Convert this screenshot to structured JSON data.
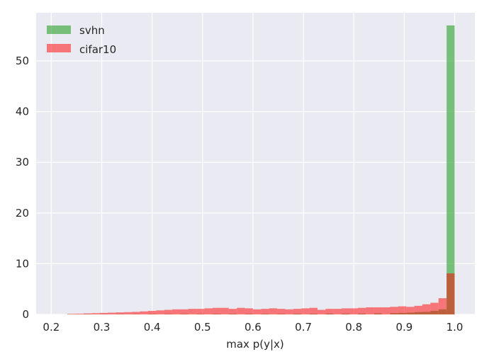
{
  "chart_data": {
    "type": "histogram",
    "xlabel": "max p(y|x)",
    "ylabel": "",
    "xlim": [
      0.17,
      1.04
    ],
    "ylim": [
      0,
      59.5
    ],
    "xticks": [
      "0.2",
      "0.3",
      "0.4",
      "0.5",
      "0.6",
      "0.7",
      "0.8",
      "0.9",
      "1.0"
    ],
    "yticks": [
      "0",
      "10",
      "20",
      "30",
      "40",
      "50"
    ],
    "grid": true,
    "legend_position": "top-left",
    "bin_width": 0.016,
    "series": [
      {
        "name": "svhn",
        "color": "#2ca02c",
        "opacity": 0.6,
        "bins": [
          [
            0.232,
            0.248,
            0.05
          ],
          [
            0.264,
            0.28,
            0.05
          ],
          [
            0.296,
            0.312,
            0.05
          ],
          [
            0.328,
            0.344,
            0.05
          ],
          [
            0.36,
            0.376,
            0.05
          ],
          [
            0.392,
            0.408,
            0.08
          ],
          [
            0.424,
            0.44,
            0.08
          ],
          [
            0.456,
            0.472,
            0.08
          ],
          [
            0.488,
            0.504,
            0.08
          ],
          [
            0.52,
            0.536,
            0.1
          ],
          [
            0.552,
            0.568,
            0.1
          ],
          [
            0.584,
            0.6,
            0.1
          ],
          [
            0.616,
            0.632,
            0.1
          ],
          [
            0.648,
            0.664,
            0.1
          ],
          [
            0.68,
            0.696,
            0.12
          ],
          [
            0.712,
            0.728,
            0.12
          ],
          [
            0.744,
            0.76,
            0.15
          ],
          [
            0.776,
            0.792,
            0.15
          ],
          [
            0.808,
            0.824,
            0.15
          ],
          [
            0.84,
            0.856,
            0.2
          ],
          [
            0.872,
            0.888,
            0.25
          ],
          [
            0.888,
            0.904,
            0.3
          ],
          [
            0.904,
            0.92,
            0.35
          ],
          [
            0.92,
            0.936,
            0.45
          ],
          [
            0.936,
            0.952,
            0.5
          ],
          [
            0.952,
            0.968,
            0.7
          ],
          [
            0.968,
            0.984,
            1.0
          ],
          [
            0.984,
            1.0,
            57.0
          ]
        ]
      },
      {
        "name": "cifar10",
        "color": "#ff0000",
        "opacity": 0.5,
        "bins": [
          [
            0.232,
            0.248,
            0.1
          ],
          [
            0.248,
            0.264,
            0.15
          ],
          [
            0.264,
            0.28,
            0.2
          ],
          [
            0.28,
            0.296,
            0.25
          ],
          [
            0.296,
            0.312,
            0.3
          ],
          [
            0.312,
            0.328,
            0.35
          ],
          [
            0.328,
            0.344,
            0.4
          ],
          [
            0.344,
            0.36,
            0.45
          ],
          [
            0.36,
            0.376,
            0.5
          ],
          [
            0.376,
            0.392,
            0.6
          ],
          [
            0.392,
            0.408,
            0.7
          ],
          [
            0.408,
            0.424,
            0.8
          ],
          [
            0.424,
            0.44,
            0.9
          ],
          [
            0.44,
            0.456,
            1.0
          ],
          [
            0.456,
            0.472,
            1.0
          ],
          [
            0.472,
            0.488,
            1.1
          ],
          [
            0.488,
            0.504,
            1.1
          ],
          [
            0.504,
            0.52,
            1.2
          ],
          [
            0.52,
            0.536,
            1.3
          ],
          [
            0.536,
            0.552,
            1.3
          ],
          [
            0.552,
            0.568,
            1.1
          ],
          [
            0.568,
            0.584,
            1.3
          ],
          [
            0.584,
            0.6,
            1.2
          ],
          [
            0.6,
            0.616,
            1.0
          ],
          [
            0.616,
            0.632,
            1.1
          ],
          [
            0.632,
            0.648,
            1.2
          ],
          [
            0.648,
            0.664,
            1.1
          ],
          [
            0.664,
            0.68,
            1.0
          ],
          [
            0.68,
            0.696,
            1.1
          ],
          [
            0.696,
            0.712,
            1.2
          ],
          [
            0.712,
            0.728,
            1.3
          ],
          [
            0.728,
            0.744,
            0.9
          ],
          [
            0.744,
            0.76,
            1.1
          ],
          [
            0.76,
            0.776,
            1.1
          ],
          [
            0.776,
            0.792,
            1.2
          ],
          [
            0.792,
            0.808,
            1.2
          ],
          [
            0.808,
            0.824,
            1.3
          ],
          [
            0.824,
            0.84,
            1.4
          ],
          [
            0.84,
            0.856,
            1.4
          ],
          [
            0.856,
            0.872,
            1.4
          ],
          [
            0.872,
            0.888,
            1.5
          ],
          [
            0.888,
            0.904,
            1.6
          ],
          [
            0.904,
            0.92,
            1.5
          ],
          [
            0.92,
            0.936,
            1.7
          ],
          [
            0.936,
            0.952,
            2.0
          ],
          [
            0.952,
            0.968,
            2.3
          ],
          [
            0.968,
            0.984,
            3.2
          ],
          [
            0.984,
            1.0,
            8.1
          ]
        ]
      }
    ]
  }
}
